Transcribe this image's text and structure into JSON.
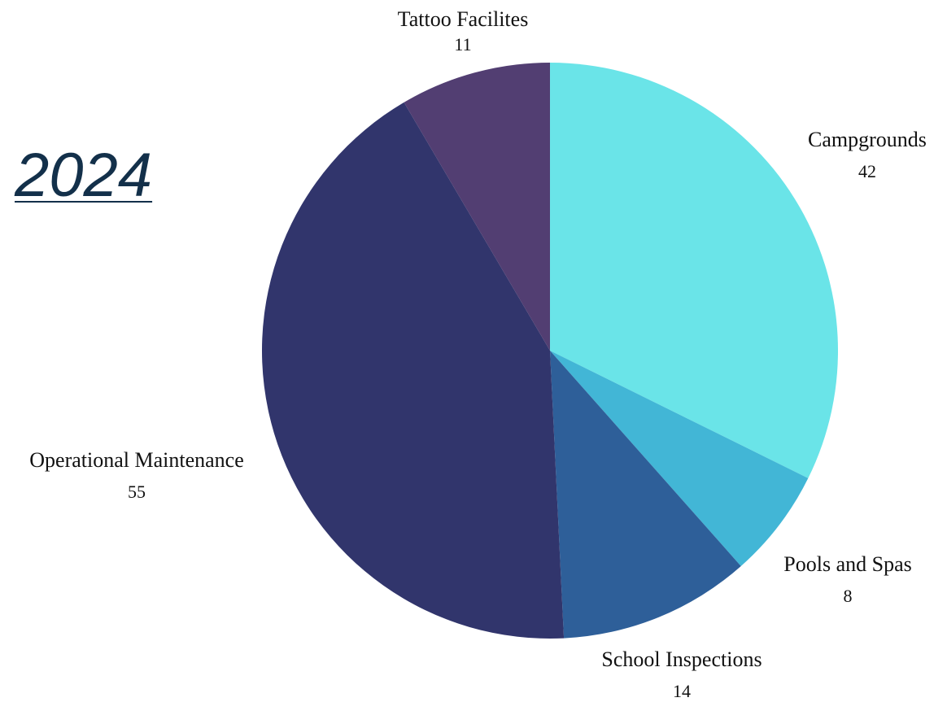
{
  "page_title": "2024",
  "chart_data": {
    "type": "pie",
    "title": "",
    "slices": [
      {
        "label": "Campgrounds",
        "value": 42,
        "color": "#6ae4e8"
      },
      {
        "label": "Pools and Spas",
        "value": 8,
        "color": "#42b6d6"
      },
      {
        "label": "School Inspections",
        "value": 14,
        "color": "#2e5f99"
      },
      {
        "label": "Operational Maintenance",
        "value": 55,
        "color": "#31356c"
      },
      {
        "label": "Tattoo Facilites",
        "value": 11,
        "color": "#523e72"
      }
    ]
  }
}
